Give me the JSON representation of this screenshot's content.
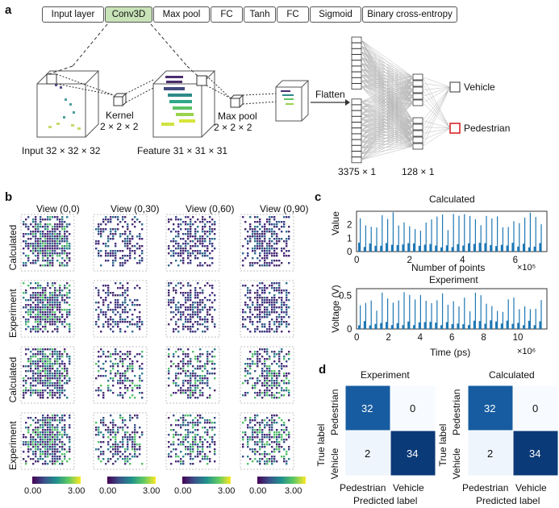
{
  "panel_labels": {
    "a": "a",
    "b": "b",
    "c": "c",
    "d": "d"
  },
  "panel_a": {
    "layers": [
      "Input layer",
      "Conv3D",
      "Max pool",
      "FC",
      "Tanh",
      "FC",
      "Sigmoid",
      "Binary cross-entropy"
    ],
    "active_layer": "Conv3D",
    "kernel_title": "Kernel",
    "kernel_size": "2 × 2 × 2",
    "maxpool_title": "Max pool",
    "maxpool_size": "2 × 2 × 2",
    "input_caption": "Input 32 × 32 × 32",
    "feature_caption": "Feature 31 × 31 × 31",
    "flatten_label": "Flatten",
    "fc1_caption": "3375 × 1",
    "fc2_caption": "128 × 1",
    "outputs": [
      "Vehicle",
      "Pedestrian"
    ],
    "colors": {
      "active": "#c8e3b8",
      "highlight": "#d62728"
    }
  },
  "panel_b": {
    "views": [
      "View (0,0)",
      "View (0,30)",
      "View (0,60)",
      "View (0,90)"
    ],
    "row_labels": [
      "Calculated",
      "Experiment",
      "Calculated",
      "Experiment"
    ],
    "colorbar_min": "0.00",
    "colorbar_max": "3.00"
  },
  "panel_c": {
    "top": {
      "title": "Calculated",
      "ylabel": "Value",
      "xlabel": "Number of points",
      "xticks": [
        "0",
        "2",
        "4",
        "6"
      ],
      "yticks": [
        "0",
        "1",
        "2"
      ],
      "scale": "×10⁵"
    },
    "bottom": {
      "title": "Experiment",
      "ylabel": "Voltage (V)",
      "xlabel": "Time (ps)",
      "xticks": [
        "0",
        "2",
        "4",
        "6",
        "8",
        "10"
      ],
      "yticks": [
        "0",
        "0.5"
      ],
      "scale": "×10⁶"
    },
    "color": "#1f77b4"
  },
  "panel_d": {
    "matrices": [
      {
        "title": "Experiment",
        "values": [
          [
            32,
            0
          ],
          [
            2,
            34
          ]
        ]
      },
      {
        "title": "Calculated",
        "values": [
          [
            32,
            0
          ],
          [
            2,
            34
          ]
        ]
      }
    ],
    "xlabel": "Predicted label",
    "ylabel": "True label",
    "classes": [
      "Pedestrian",
      "Vehicle"
    ]
  },
  "chart_data": [
    {
      "type": "heatmap",
      "title": "Experiment",
      "xlabel": "Predicted label",
      "ylabel": "True label",
      "categories": [
        "Pedestrian",
        "Vehicle"
      ],
      "values": [
        [
          32,
          0
        ],
        [
          2,
          34
        ]
      ]
    },
    {
      "type": "heatmap",
      "title": "Calculated",
      "xlabel": "Predicted label",
      "ylabel": "True label",
      "categories": [
        "Pedestrian",
        "Vehicle"
      ],
      "values": [
        [
          32,
          0
        ],
        [
          2,
          34
        ]
      ]
    }
  ]
}
